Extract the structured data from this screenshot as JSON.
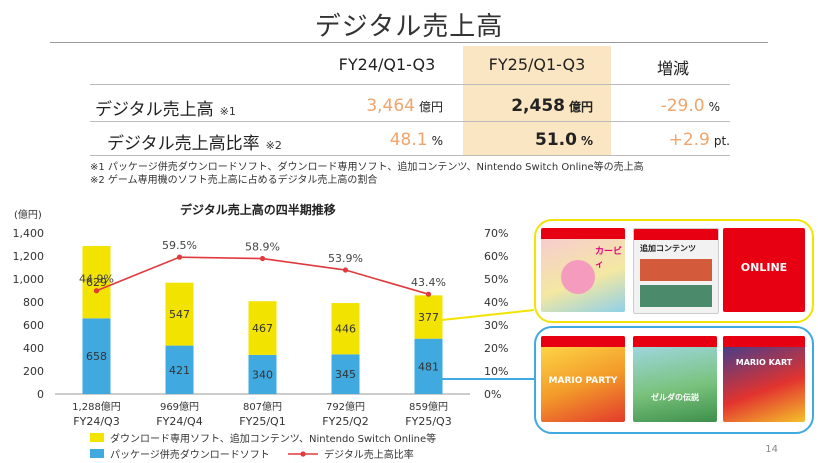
{
  "page": {
    "title": "デジタル売上高",
    "page_number": "14"
  },
  "table": {
    "headers": [
      "FY24/Q1-Q3",
      "FY25/Q1-Q3",
      "増減"
    ],
    "rows": [
      {
        "label": "デジタル売上高",
        "note_mark": "※1",
        "prev": "3,464",
        "prev_unit": "億円",
        "curr": "2,458",
        "curr_unit": "億円",
        "change": "-29.0",
        "change_unit": "%"
      },
      {
        "label": "デジタル売上高比率",
        "note_mark": "※2",
        "prev": "48.1",
        "prev_unit": "%",
        "curr": "51.0",
        "curr_unit": "%",
        "change": "+2.9",
        "change_unit": "pt."
      }
    ],
    "notes": [
      "※1 パッケージ併売ダウンロードソフト、ダウンロード専用ソフト、追加コンテンツ、Nintendo Switch Online等の売上高",
      "※2 ゲーム専用機のソフト売上高に占めるデジタル売上高の割合"
    ]
  },
  "chart_data": {
    "type": "bar",
    "title": "デジタル売上高の四半期推移",
    "ylabel": "(億円)",
    "ylim": [
      0,
      1400
    ],
    "y_ticks": [
      "0",
      "200",
      "400",
      "600",
      "800",
      "1,000",
      "1,200",
      "1,400"
    ],
    "y2lim": [
      0,
      70
    ],
    "y2_ticks": [
      "0%",
      "10%",
      "20%",
      "30%",
      "40%",
      "50%",
      "60%",
      "70%"
    ],
    "categories": [
      "FY24/Q3",
      "FY24/Q4",
      "FY25/Q1",
      "FY25/Q2",
      "FY25/Q3"
    ],
    "totals": [
      "1,288億円",
      "969億円",
      "807億円",
      "792億円",
      "859億円"
    ],
    "series": [
      {
        "name": "パッケージ併売ダウンロードソフト",
        "color": "#3fa9e0",
        "values": [
          658,
          421,
          340,
          345,
          481
        ],
        "labels": [
          "658",
          "421",
          "340",
          "345",
          "481"
        ]
      },
      {
        "name": "ダウンロード専用ソフト、追加コンテンツ、Nintendo Switch Online等",
        "color": "#f2e300",
        "values": [
          629,
          547,
          467,
          446,
          377
        ],
        "labels": [
          "629",
          "547",
          "467",
          "446",
          "377"
        ]
      }
    ],
    "line": {
      "name": "デジタル売上高比率",
      "color": "#e03a3e",
      "axis": "right",
      "values": [
        44.9,
        59.5,
        58.9,
        53.9,
        43.4
      ],
      "labels": [
        "44.9%",
        "59.5%",
        "58.9%",
        "53.9%",
        "43.4%"
      ]
    },
    "legend": [
      {
        "label": "ダウンロード専用ソフト、追加コンテンツ、Nintendo Switch Online等",
        "color": "#f2e300"
      },
      {
        "label": "パッケージ併売ダウンロードソフト",
        "color": "#3fa9e0"
      },
      {
        "label": "デジタル売上高比率",
        "color": "#e03a3e"
      }
    ]
  },
  "callouts": {
    "yellow_box_color": "#f2e300",
    "blue_box_color": "#3fa9e0",
    "yellow": [
      {
        "name": "kirby-cover",
        "text": "カービィ"
      },
      {
        "name": "dlc-card",
        "text": "追加コンテンツ"
      },
      {
        "name": "nso-card",
        "text": "ONLINE"
      }
    ],
    "blue": [
      {
        "name": "mario-party-cover",
        "text": "MARIO PARTY"
      },
      {
        "name": "zelda-cover",
        "text": "ゼルダの伝説"
      },
      {
        "name": "mario-kart-cover",
        "text": "MARIO KART"
      }
    ]
  }
}
